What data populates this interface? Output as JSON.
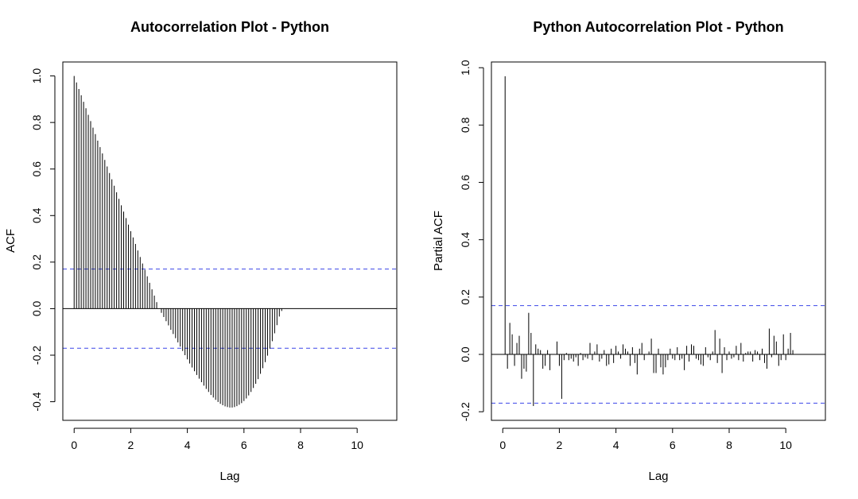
{
  "chart_data": [
    {
      "type": "bar",
      "title": "Autocorrelation Plot - Python",
      "xlabel": "Lag",
      "ylabel": "ACF",
      "xlim": [
        -0.4,
        11.4
      ],
      "ylim": [
        -0.48,
        1.06
      ],
      "x_ticks": [
        "0",
        "2",
        "4",
        "6",
        "8",
        "10"
      ],
      "y_ticks": [
        "-0.4",
        "-0.2",
        "0.0",
        "0.2",
        "0.4",
        "0.6",
        "0.8",
        "1.0"
      ],
      "confidence_bounds": [
        0.17,
        -0.17
      ],
      "lag_step": 0.0833333,
      "values": [
        1.0,
        0.972,
        0.944,
        0.917,
        0.889,
        0.861,
        0.833,
        0.806,
        0.778,
        0.75,
        0.722,
        0.694,
        0.667,
        0.639,
        0.611,
        0.583,
        0.556,
        0.528,
        0.5,
        0.472,
        0.444,
        0.417,
        0.389,
        0.361,
        0.333,
        0.306,
        0.278,
        0.25,
        0.222,
        0.194,
        0.167,
        0.139,
        0.111,
        0.083,
        0.056,
        0.028,
        0.0,
        -0.018,
        -0.036,
        -0.054,
        -0.072,
        -0.091,
        -0.109,
        -0.127,
        -0.145,
        -0.163,
        -0.182,
        -0.2,
        -0.218,
        -0.236,
        -0.253,
        -0.269,
        -0.285,
        -0.301,
        -0.316,
        -0.331,
        -0.345,
        -0.358,
        -0.371,
        -0.382,
        -0.392,
        -0.401,
        -0.409,
        -0.415,
        -0.42,
        -0.423,
        -0.425,
        -0.425,
        -0.423,
        -0.419,
        -0.413,
        -0.406,
        -0.397,
        -0.386,
        -0.373,
        -0.358,
        -0.341,
        -0.323,
        -0.303,
        -0.28,
        -0.256,
        -0.23,
        -0.202,
        -0.172,
        -0.14,
        -0.106,
        -0.071,
        -0.034,
        -0.01,
        0.0,
        0.0,
        0.0,
        0.0,
        0.0,
        0.0,
        0.0,
        0.0,
        0.0,
        0.0,
        0.0,
        0.0,
        0.0,
        0.0,
        0.0,
        0.0,
        0.0,
        0.0,
        0.0,
        0.0,
        0.0,
        0.0,
        0.0,
        0.0,
        0.0,
        0.0,
        0.0,
        0.0,
        0.0,
        0.0,
        0.0,
        0.0,
        0.0,
        0.0,
        0.0,
        0.0,
        0.0,
        0.0,
        0.0,
        0.0,
        0.0,
        0.0
      ]
    },
    {
      "type": "bar",
      "title": "Python Autocorrelation Plot - Python",
      "xlabel": "Lag",
      "ylabel": "Partial ACF",
      "xlim": [
        -0.4,
        11.4
      ],
      "ylim": [
        -0.23,
        1.02
      ],
      "x_ticks": [
        "0",
        "2",
        "4",
        "6",
        "8",
        "10"
      ],
      "y_ticks": [
        "-0.2",
        "0.0",
        "0.2",
        "0.4",
        "0.6",
        "0.8",
        "1.0"
      ],
      "confidence_bounds": [
        0.17,
        -0.17
      ],
      "lag_step": 0.0833333,
      "start_lag": 0.0833333,
      "values": [
        0.97,
        -0.05,
        0.11,
        0.07,
        -0.04,
        0.04,
        0.065,
        -0.085,
        -0.05,
        -0.06,
        0.145,
        0.075,
        -0.18,
        0.035,
        0.02,
        0.015,
        -0.05,
        -0.04,
        0.015,
        -0.055,
        0.0,
        0.0,
        0.045,
        -0.04,
        -0.155,
        -0.02,
        0.005,
        -0.02,
        -0.015,
        -0.025,
        -0.01,
        -0.04,
        0.005,
        -0.02,
        -0.01,
        -0.015,
        0.04,
        -0.02,
        0.01,
        0.035,
        -0.025,
        -0.015,
        0.015,
        -0.04,
        -0.035,
        0.02,
        -0.03,
        0.03,
        0.01,
        -0.015,
        0.035,
        0.02,
        0.01,
        -0.04,
        0.025,
        -0.03,
        -0.07,
        0.02,
        0.04,
        -0.02,
        0.0,
        0.01,
        0.055,
        -0.065,
        -0.065,
        0.02,
        -0.045,
        -0.07,
        -0.045,
        -0.02,
        0.02,
        -0.015,
        -0.02,
        0.025,
        -0.02,
        -0.015,
        -0.055,
        0.03,
        -0.025,
        0.035,
        0.03,
        -0.015,
        -0.02,
        -0.035,
        -0.04,
        0.025,
        -0.01,
        -0.02,
        0.01,
        0.085,
        -0.03,
        0.055,
        -0.065,
        0.025,
        -0.02,
        0.01,
        -0.015,
        -0.01,
        0.03,
        -0.02,
        0.04,
        -0.025,
        0.005,
        0.01,
        0.01,
        -0.025,
        0.015,
        0.01,
        -0.02,
        0.02,
        -0.03,
        -0.05,
        0.09,
        -0.01,
        0.065,
        0.045,
        -0.04,
        -0.02,
        0.07,
        -0.02,
        0.02,
        0.075,
        0.015
      ]
    }
  ]
}
